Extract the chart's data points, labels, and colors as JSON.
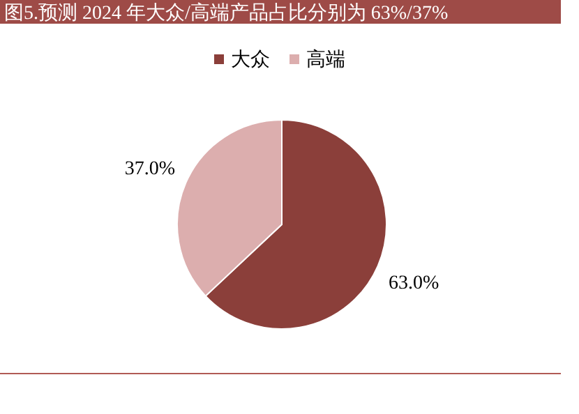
{
  "chart_data": {
    "type": "pie",
    "title": "图5.预测 2024 年大众/高端产品占比分别为 63%/37%",
    "categories": [
      "大众",
      "高端"
    ],
    "values": [
      63,
      37
    ],
    "colors": [
      "#8b3f3a",
      "#dcaeae"
    ],
    "value_labels": [
      "63.0%",
      "37.0%"
    ],
    "legend": "top"
  }
}
